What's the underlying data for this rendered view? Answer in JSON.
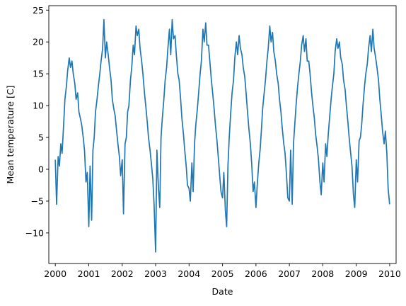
{
  "chart_data": {
    "type": "line",
    "title": "",
    "xlabel": "Date",
    "ylabel": "Mean temperature [C]",
    "xlim": [
      "1999-10-22",
      "2010-03-12"
    ],
    "ylim": [
      -14.8,
      25.7
    ],
    "x_ticks": [
      "2000",
      "2001",
      "2002",
      "2003",
      "2004",
      "2005",
      "2006",
      "2007",
      "2008",
      "2009",
      "2010"
    ],
    "y_ticks": [
      -10,
      -5,
      0,
      5,
      10,
      15,
      20,
      25
    ],
    "grid": false,
    "legend": "none",
    "color": "#1f77b4",
    "series": [
      {
        "x": [
          "2000-01-01",
          "2000-01-15",
          "2000-02-01",
          "2000-02-15",
          "2000-03-01",
          "2000-03-15",
          "2000-04-01",
          "2000-04-15",
          "2000-05-01",
          "2000-05-15",
          "2000-06-01",
          "2000-06-15",
          "2000-07-01",
          "2000-07-15",
          "2000-08-01",
          "2000-08-15",
          "2000-09-01",
          "2000-09-15",
          "2000-10-01",
          "2000-10-15",
          "2000-11-01",
          "2000-11-15",
          "2000-12-01",
          "2000-12-15",
          "2001-01-01",
          "2001-01-15",
          "2001-02-01",
          "2001-02-15",
          "2001-03-01",
          "2001-03-15",
          "2001-04-01",
          "2001-04-15",
          "2001-05-01",
          "2001-05-15",
          "2001-06-01",
          "2001-06-15",
          "2001-07-01",
          "2001-07-15",
          "2001-08-01",
          "2001-08-15",
          "2001-09-01",
          "2001-09-15",
          "2001-10-01",
          "2001-10-15",
          "2001-11-01",
          "2001-11-15",
          "2001-12-01",
          "2001-12-15",
          "2002-01-01",
          "2002-01-15",
          "2002-02-01",
          "2002-02-15",
          "2002-03-01",
          "2002-03-15",
          "2002-04-01",
          "2002-04-15",
          "2002-05-01",
          "2002-05-15",
          "2002-06-01",
          "2002-06-15",
          "2002-07-01",
          "2002-07-15",
          "2002-08-01",
          "2002-08-15",
          "2002-09-01",
          "2002-09-15",
          "2002-10-01",
          "2002-10-15",
          "2002-11-01",
          "2002-11-15",
          "2002-12-01",
          "2002-12-15",
          "2003-01-01",
          "2003-01-15",
          "2003-02-01",
          "2003-02-15",
          "2003-03-01",
          "2003-03-15",
          "2003-04-01",
          "2003-04-15",
          "2003-05-01",
          "2003-05-15",
          "2003-06-01",
          "2003-06-15",
          "2003-07-01",
          "2003-07-15",
          "2003-08-01",
          "2003-08-15",
          "2003-09-01",
          "2003-09-15",
          "2003-10-01",
          "2003-10-15",
          "2003-11-01",
          "2003-11-15",
          "2003-12-01",
          "2003-12-15",
          "2004-01-01",
          "2004-01-15",
          "2004-02-01",
          "2004-02-15",
          "2004-03-01",
          "2004-03-15",
          "2004-04-01",
          "2004-04-15",
          "2004-05-01",
          "2004-05-15",
          "2004-06-01",
          "2004-06-15",
          "2004-07-01",
          "2004-07-15",
          "2004-08-01",
          "2004-08-15",
          "2004-09-01",
          "2004-09-15",
          "2004-10-01",
          "2004-10-15",
          "2004-11-01",
          "2004-11-15",
          "2004-12-01",
          "2004-12-15",
          "2005-01-01",
          "2005-01-15",
          "2005-02-01",
          "2005-02-15",
          "2005-03-01",
          "2005-03-15",
          "2005-04-01",
          "2005-04-15",
          "2005-05-01",
          "2005-05-15",
          "2005-06-01",
          "2005-06-15",
          "2005-07-01",
          "2005-07-15",
          "2005-08-01",
          "2005-08-15",
          "2005-09-01",
          "2005-09-15",
          "2005-10-01",
          "2005-10-15",
          "2005-11-01",
          "2005-11-15",
          "2005-12-01",
          "2005-12-15",
          "2006-01-01",
          "2006-01-15",
          "2006-02-01",
          "2006-02-15",
          "2006-03-01",
          "2006-03-15",
          "2006-04-01",
          "2006-04-15",
          "2006-05-01",
          "2006-05-15",
          "2006-06-01",
          "2006-06-15",
          "2006-07-01",
          "2006-07-15",
          "2006-08-01",
          "2006-08-15",
          "2006-09-01",
          "2006-09-15",
          "2006-10-01",
          "2006-10-15",
          "2006-11-01",
          "2006-11-15",
          "2006-12-01",
          "2006-12-15",
          "2007-01-01",
          "2007-01-15",
          "2007-02-01",
          "2007-02-15",
          "2007-03-01",
          "2007-03-15",
          "2007-04-01",
          "2007-04-15",
          "2007-05-01",
          "2007-05-15",
          "2007-06-01",
          "2007-06-15",
          "2007-07-01",
          "2007-07-15",
          "2007-08-01",
          "2007-08-15",
          "2007-09-01",
          "2007-09-15",
          "2007-10-01",
          "2007-10-15",
          "2007-11-01",
          "2007-11-15",
          "2007-12-01",
          "2007-12-15",
          "2008-01-01",
          "2008-01-15",
          "2008-02-01",
          "2008-02-15",
          "2008-03-01",
          "2008-03-15",
          "2008-04-01",
          "2008-04-15",
          "2008-05-01",
          "2008-05-15",
          "2008-06-01",
          "2008-06-15",
          "2008-07-01",
          "2008-07-15",
          "2008-08-01",
          "2008-08-15",
          "2008-09-01",
          "2008-09-15",
          "2008-10-01",
          "2008-10-15",
          "2008-11-01",
          "2008-11-15",
          "2008-12-01",
          "2008-12-15",
          "2009-01-01",
          "2009-01-15",
          "2009-02-01",
          "2009-02-15",
          "2009-03-01",
          "2009-03-15",
          "2009-04-01",
          "2009-04-15",
          "2009-05-01",
          "2009-05-15",
          "2009-06-01",
          "2009-06-15",
          "2009-07-01",
          "2009-07-15",
          "2009-08-01",
          "2009-08-15",
          "2009-09-01",
          "2009-09-15",
          "2009-10-01",
          "2009-10-15",
          "2009-11-01",
          "2009-11-15",
          "2009-12-01",
          "2009-12-15",
          "2009-12-31"
        ],
        "y": [
          1.5,
          -5.5,
          2.0,
          0.5,
          4.0,
          2.5,
          7.0,
          11.0,
          13.0,
          15.5,
          17.5,
          16.0,
          17.0,
          15.0,
          13.5,
          11.0,
          12.0,
          9.0,
          8.0,
          7.0,
          5.0,
          3.0,
          -2.0,
          -0.5,
          -9.0,
          0.5,
          -8.0,
          3.0,
          5.0,
          9.0,
          11.0,
          13.0,
          15.0,
          17.0,
          19.0,
          23.5,
          17.5,
          20.0,
          18.0,
          16.0,
          14.0,
          11.0,
          9.5,
          8.5,
          6.0,
          4.0,
          2.0,
          -1.0,
          1.5,
          -7.0,
          4.0,
          5.0,
          9.0,
          10.0,
          14.0,
          16.0,
          19.5,
          18.0,
          22.5,
          21.0,
          22.0,
          19.0,
          17.0,
          15.0,
          12.0,
          10.0,
          7.5,
          5.0,
          3.0,
          1.0,
          -1.5,
          -5.5,
          -13.0,
          3.0,
          -3.0,
          -6.0,
          5.0,
          8.0,
          11.0,
          14.0,
          16.0,
          19.0,
          22.0,
          18.0,
          23.5,
          20.5,
          21.0,
          18.0,
          15.0,
          14.0,
          11.0,
          8.0,
          5.5,
          3.0,
          0.5,
          -2.5,
          -3.0,
          -5.0,
          1.0,
          -3.5,
          4.0,
          7.0,
          9.5,
          12.0,
          15.0,
          17.0,
          22.0,
          20.0,
          23.0,
          19.5,
          19.5,
          17.0,
          14.0,
          12.0,
          9.5,
          7.0,
          4.5,
          2.0,
          -1.0,
          -3.5,
          -4.5,
          -0.5,
          -6.5,
          -9.0,
          0.5,
          5.0,
          9.0,
          12.0,
          14.0,
          17.5,
          20.0,
          18.0,
          21.0,
          19.0,
          18.0,
          16.0,
          14.5,
          12.0,
          9.0,
          6.5,
          4.0,
          1.0,
          -3.5,
          -2.0,
          -6.0,
          -2.5,
          1.0,
          3.0,
          6.0,
          9.5,
          12.0,
          14.0,
          17.0,
          19.0,
          22.5,
          20.0,
          21.5,
          18.5,
          17.0,
          15.0,
          13.5,
          11.0,
          9.0,
          6.5,
          4.0,
          2.5,
          -1.0,
          -4.5,
          -5.0,
          3.0,
          -5.5,
          4.0,
          7.0,
          10.0,
          13.0,
          15.0,
          17.0,
          19.5,
          21.0,
          18.5,
          20.5,
          17.0,
          17.0,
          15.0,
          12.0,
          10.0,
          8.0,
          5.5,
          3.5,
          1.5,
          -2.0,
          -4.0,
          1.0,
          -2.0,
          4.0,
          2.0,
          5.5,
          8.0,
          11.0,
          13.0,
          15.0,
          18.5,
          20.5,
          19.0,
          20.0,
          17.5,
          16.5,
          14.0,
          12.5,
          10.0,
          7.5,
          5.0,
          2.5,
          0.5,
          -4.0,
          -6.0,
          1.5,
          -2.0,
          4.5,
          5.0,
          7.0,
          10.0,
          13.0,
          15.0,
          16.5,
          19.0,
          21.0,
          18.5,
          22.0,
          19.0,
          17.5,
          16.0,
          14.0,
          11.0,
          8.5,
          6.0,
          4.0,
          6.0,
          2.5,
          -3.0,
          -5.5
        ]
      }
    ]
  }
}
